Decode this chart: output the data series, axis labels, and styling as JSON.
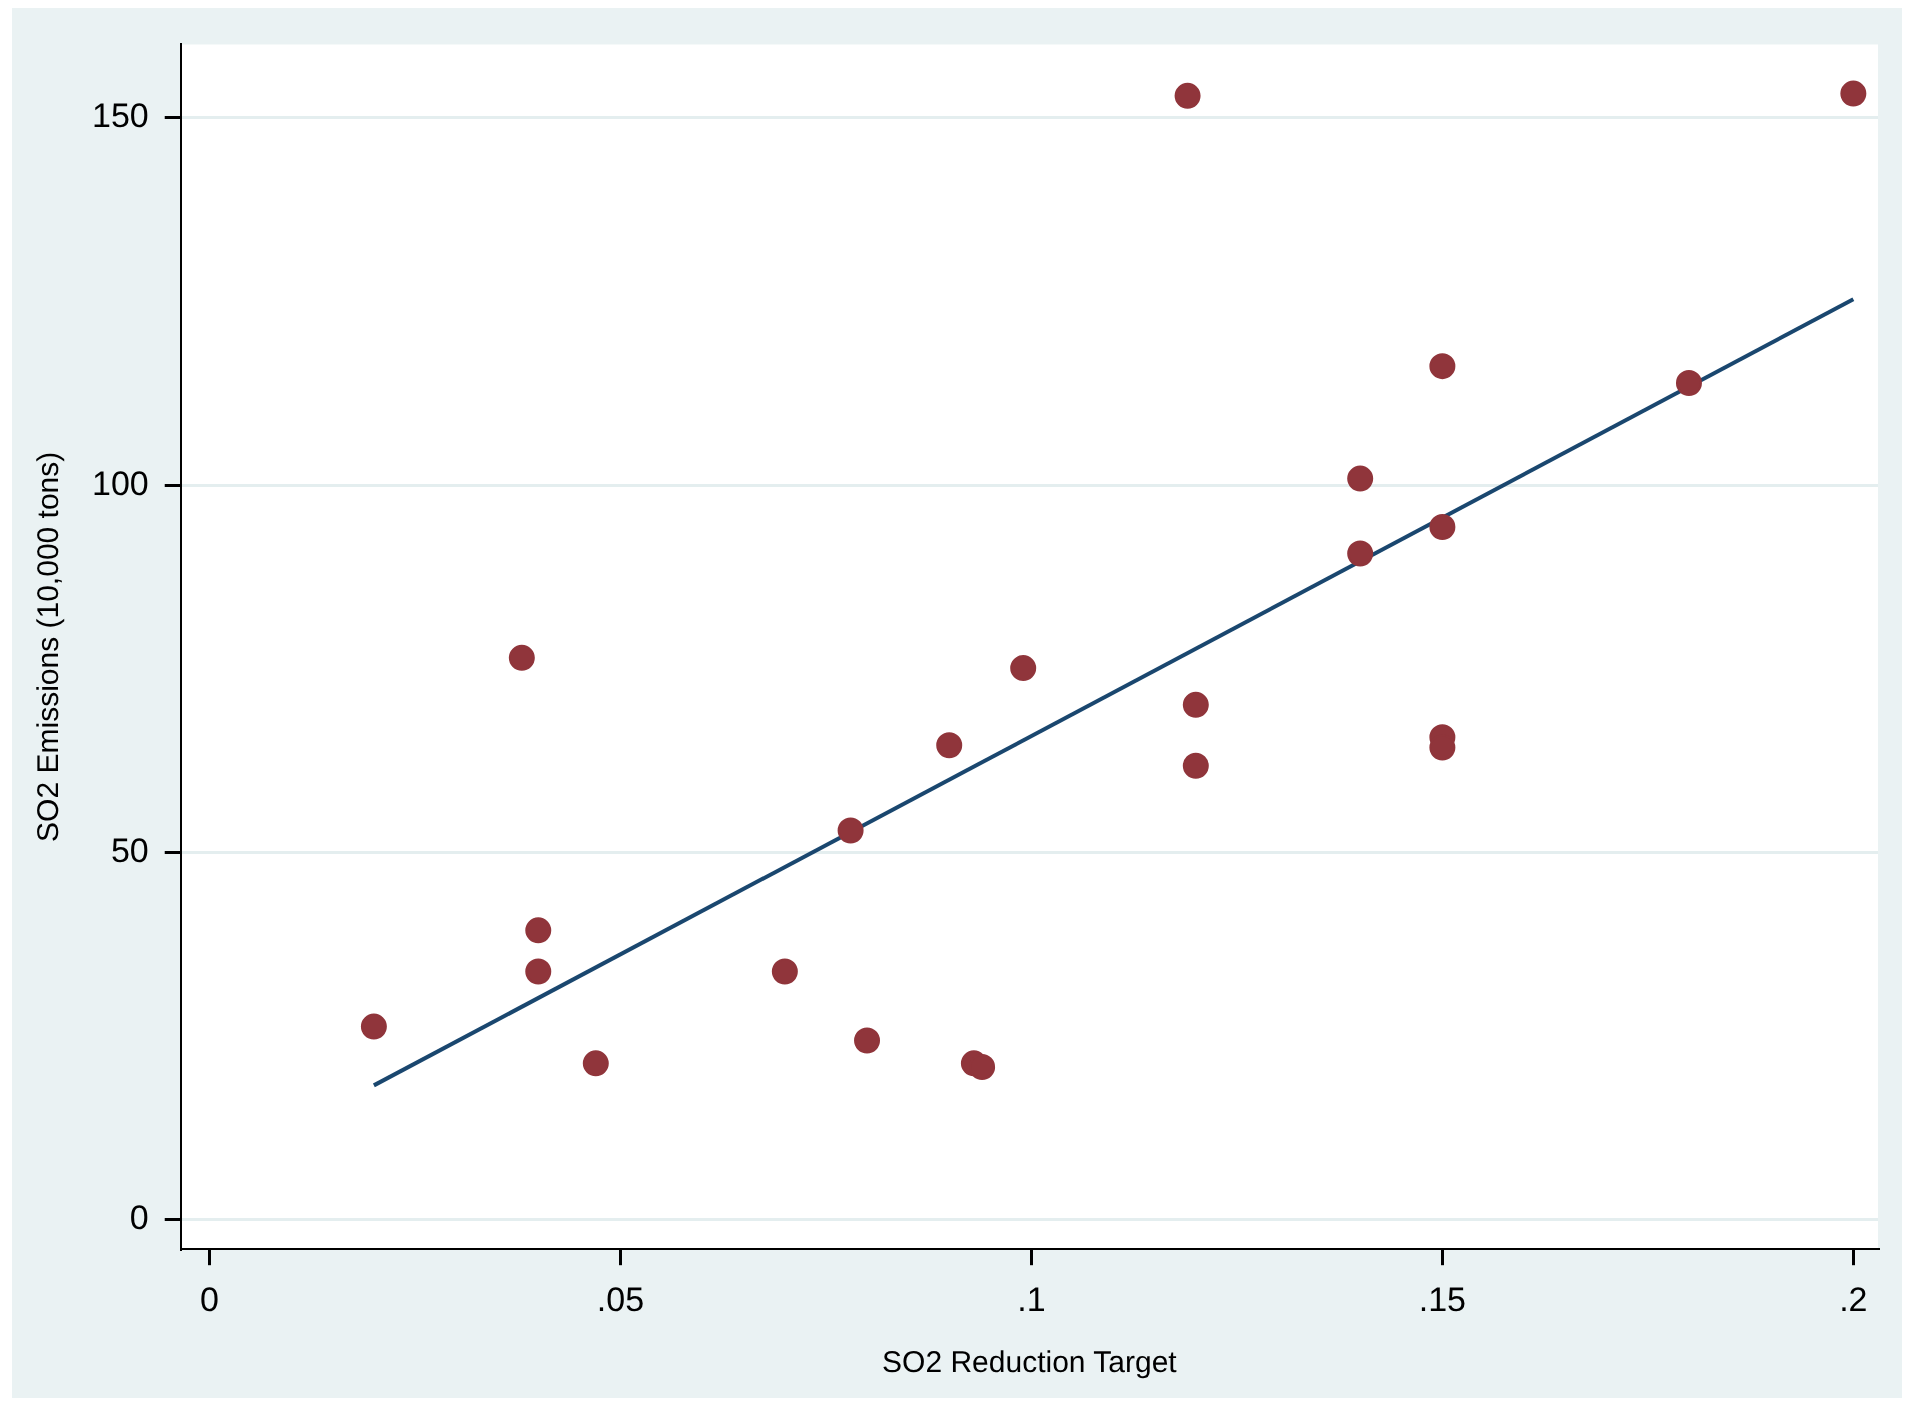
{
  "chart_data": {
    "type": "scatter",
    "xlabel": "SO2 Reduction Target",
    "ylabel": "SO2 Emissions (10,000 tons)",
    "xlim": [
      -0.0035,
      0.203
    ],
    "ylim": [
      -4,
      160
    ],
    "xticks": [
      {
        "value": 0,
        "label": "0"
      },
      {
        "value": 0.05,
        "label": ".05"
      },
      {
        "value": 0.1,
        "label": ".1"
      },
      {
        "value": 0.15,
        "label": ".15"
      },
      {
        "value": 0.2,
        "label": ".2"
      }
    ],
    "yticks": [
      0,
      50,
      100,
      150
    ],
    "grid": "y",
    "legend": false,
    "marker": "circle",
    "series": [
      {
        "type": "scatter",
        "color": "#90353b",
        "x": [
          0.02,
          0.038,
          0.04,
          0.04,
          0.047,
          0.07,
          0.078,
          0.08,
          0.09,
          0.093,
          0.094,
          0.099,
          0.119,
          0.12,
          0.12,
          0.14,
          0.14,
          0.15,
          0.15,
          0.15,
          0.15,
          0.18,
          0.2
        ],
        "values": [
          26.3,
          76.5,
          39.4,
          33.8,
          21.3,
          33.8,
          53,
          24.4,
          64.6,
          21.3,
          20.8,
          75.1,
          153,
          70.1,
          61.8,
          100.9,
          90.7,
          116.2,
          94.3,
          65.7,
          64.3,
          113.9,
          153.3
        ]
      },
      {
        "type": "line",
        "color": "#1a476f",
        "marker": "none",
        "x": [
          0.02,
          0.2
        ],
        "values": [
          18.3,
          125.3
        ]
      }
    ]
  }
}
